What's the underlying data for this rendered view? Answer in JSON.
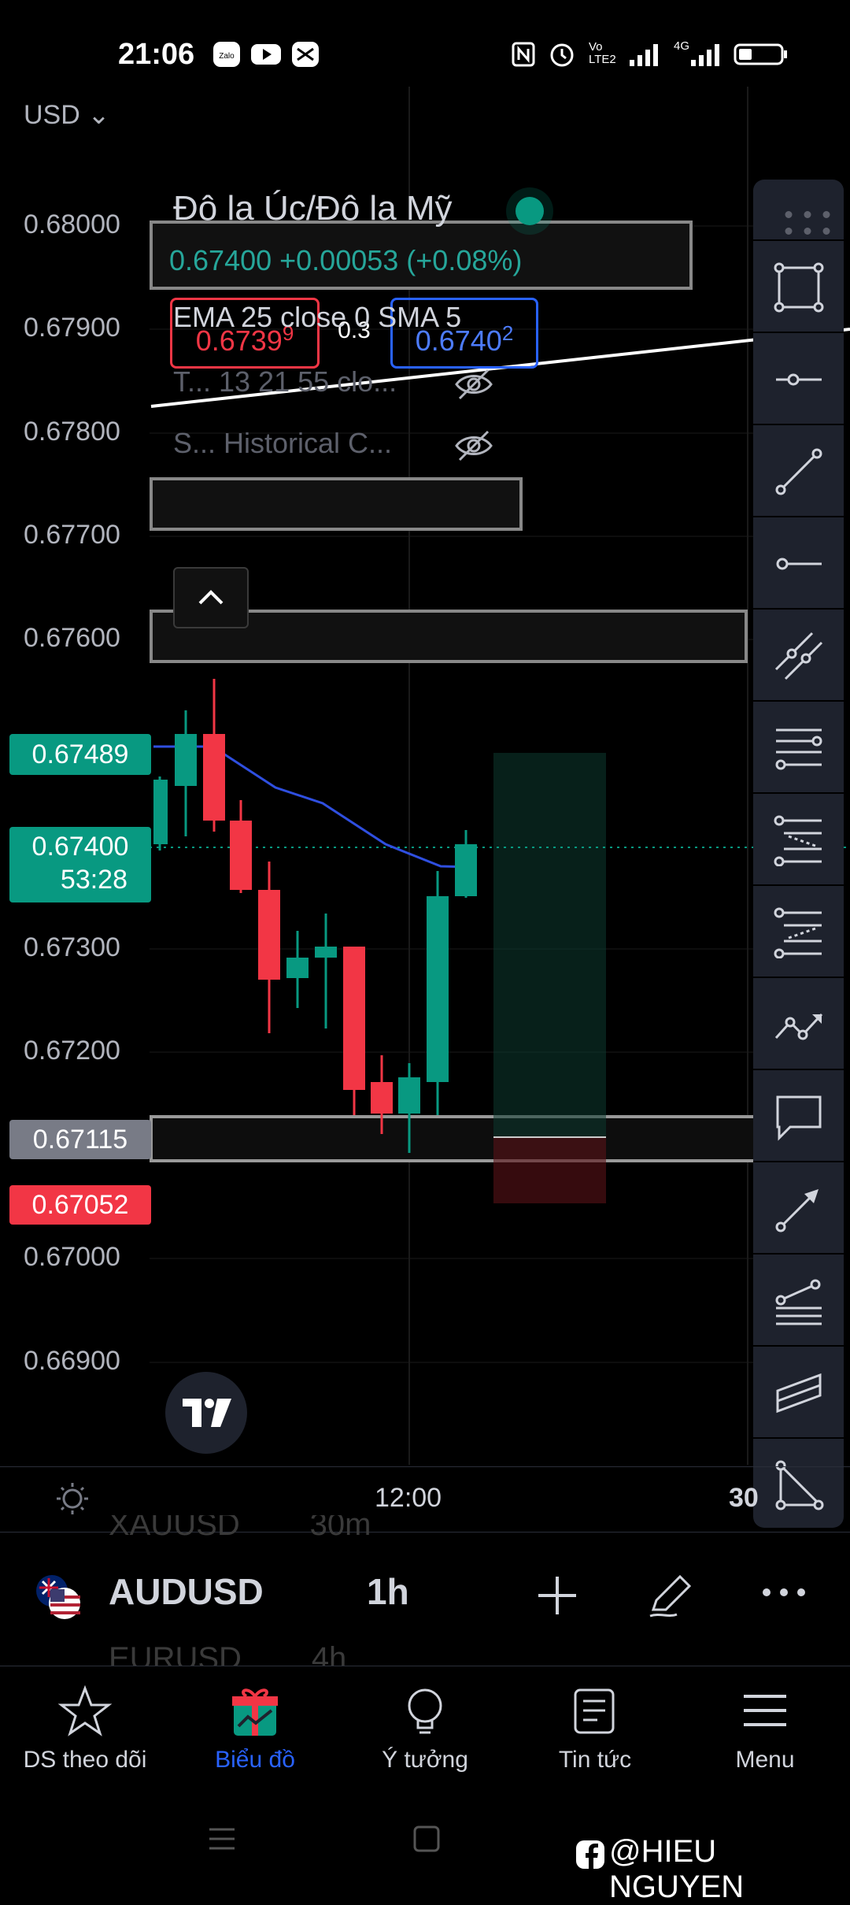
{
  "status_bar": {
    "time": "21:06",
    "left_icons": [
      "zalo-icon",
      "youtube-icon",
      "capcut-icon"
    ],
    "right_icons": [
      "nfc-icon",
      "alarm-icon",
      "volte-icon",
      "signal-icon",
      "signal-4g-icon",
      "battery-icon"
    ],
    "volte_text": "Vo LTE2",
    "network_text": "4G"
  },
  "legend": {
    "title": "Đô la Úc/Đô la Mỹ",
    "price_line": "0.67400  +0.00053 (+0.08%)",
    "bid_main": "0.6739",
    "bid_sup": "9",
    "spread": "0.3",
    "ask_main": "0.6740",
    "ask_sup": "2",
    "indicator_1": "EMA 25 close 0 SMA 5",
    "indicator_2": "T... 13 21 55 clo...",
    "indicator_3": "S... Historical C...",
    "colors": {
      "up": "#089981",
      "down": "#f23645",
      "ask": "#2962ff"
    }
  },
  "price_axis": [
    "0.68000",
    "0.67900",
    "0.67800",
    "0.67700",
    "0.67600",
    "0.67300",
    "0.67200",
    "0.67000",
    "0.66900"
  ],
  "price_tags": {
    "tag_top": "0.67489",
    "tag_current": "0.67400",
    "tag_countdown": "53:28",
    "tag_grey": "0.67115",
    "tag_red": "0.67052"
  },
  "time_axis": {
    "tick_1": "12:00",
    "tick_2": "30"
  },
  "symbol_bar": {
    "ghost_above": "XAUUSD        30m",
    "symbol": "AUDUSD",
    "interval": "1h",
    "ghost_below": "EURUSD        4h"
  },
  "bottom_nav": {
    "items": [
      {
        "label": "DS theo dõi",
        "icon": "star-icon"
      },
      {
        "label": "Biểu đồ",
        "icon": "gift-chart-icon"
      },
      {
        "label": "Ý tưởng",
        "icon": "lightbulb-icon"
      },
      {
        "label": "Tin tức",
        "icon": "news-icon"
      },
      {
        "label": "Menu",
        "icon": "hamburger-icon"
      }
    ],
    "active_color": "#2962ff"
  },
  "watermark": "@HIEU NGUYEN",
  "toolbar_icons": [
    "drag-handle-icon",
    "rectangle-icon",
    "horizontal-ray-icon",
    "trend-line-icon",
    "horizontal-line-icon",
    "parallel-line-icon",
    "fib-retracement-icon",
    "long-position-icon",
    "short-position-icon",
    "path-icon",
    "comment-icon",
    "arrow-icon",
    "fib-fan-icon",
    "parallel-channel-icon",
    "triangle-icon"
  ]
}
